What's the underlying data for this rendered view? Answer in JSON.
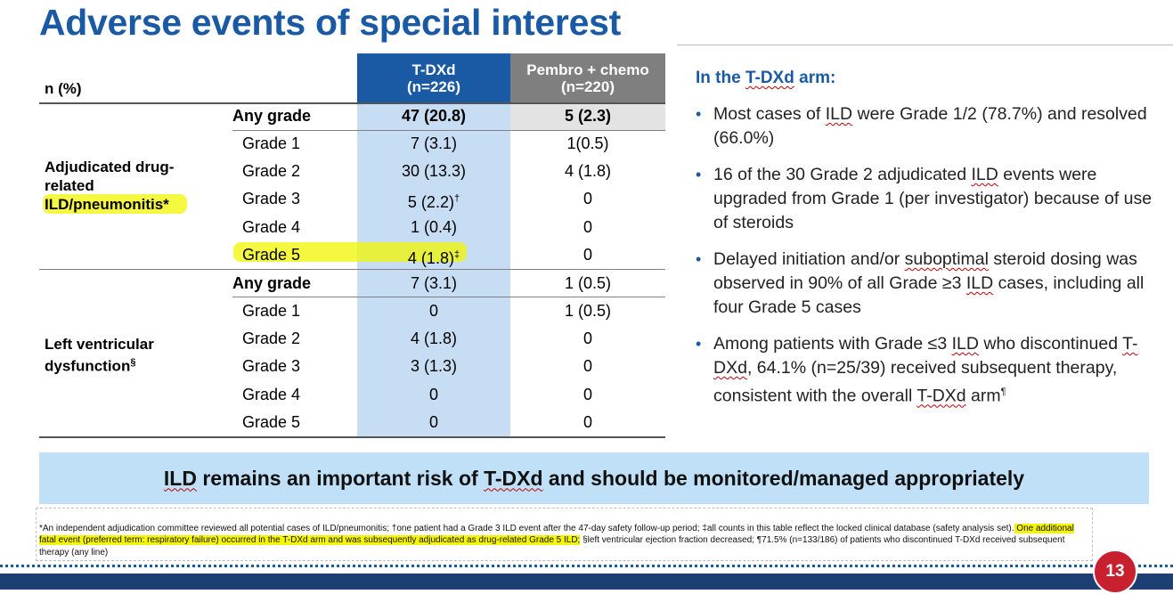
{
  "title": "Adverse events of special interest",
  "table": {
    "corner": "n (%)",
    "col_tdxd": {
      "name": "T-DXd",
      "n": "(n=226)"
    },
    "col_pem": {
      "name": "Pembro + chemo",
      "n": "(n=220)"
    },
    "ild": {
      "label_line1": "Adjudicated drug-",
      "label_line2": "related",
      "label_line3": "ILD/pneumonitis*",
      "rows": [
        {
          "grade": "Any grade",
          "tdxd": "47 (20.8)",
          "pem": "5 (2.3)"
        },
        {
          "grade": "Grade 1",
          "tdxd": "7 (3.1)",
          "pem": "1(0.5)"
        },
        {
          "grade": "Grade 2",
          "tdxd": "30 (13.3)",
          "pem": "4 (1.8)"
        },
        {
          "grade": "Grade 3",
          "tdxd": "5 (2.2)",
          "tdxd_mark": "†",
          "pem": "0"
        },
        {
          "grade": "Grade 4",
          "tdxd": "1 (0.4)",
          "pem": "0"
        },
        {
          "grade": "Grade 5",
          "tdxd": "4 (1.8)",
          "tdxd_mark": "‡",
          "pem": "0"
        }
      ]
    },
    "lvd": {
      "label_line1": "Left ventricular",
      "label_line2": "dysfunction",
      "label_mark": "§",
      "rows": [
        {
          "grade": "Any grade",
          "tdxd": "7 (3.1)",
          "pem": "1 (0.5)"
        },
        {
          "grade": "Grade 1",
          "tdxd": "0",
          "pem": "1 (0.5)"
        },
        {
          "grade": "Grade 2",
          "tdxd": "4 (1.8)",
          "pem": "0"
        },
        {
          "grade": "Grade 3",
          "tdxd": "3 (1.3)",
          "pem": "0"
        },
        {
          "grade": "Grade 4",
          "tdxd": "0",
          "pem": "0"
        },
        {
          "grade": "Grade 5",
          "tdxd": "0",
          "pem": "0"
        }
      ]
    }
  },
  "panel": {
    "title_pre": "In the ",
    "title_term": "T-DXd",
    "title_post": " arm:",
    "b1_a": "Most cases of ",
    "b1_term": "ILD",
    "b1_b": " were Grade 1/2 (78.7%) and resolved (66.0%)",
    "b2_a": "16 of the 30 Grade 2 adjudicated ",
    "b2_term": "ILD",
    "b2_b": " events were upgraded from Grade 1 (per investigator) because of use of steroids",
    "b3_a": "Delayed initiation and/or ",
    "b3_term": "suboptimal",
    "b3_b": " steroid dosing was observed in 90% of all Grade ≥3 ",
    "b3_term2": "ILD",
    "b3_c": " cases, including all four Grade 5 cases",
    "b4_a": "Among patients with Grade ≤3 ",
    "b4_term": "ILD",
    "b4_b": " who discontinued ",
    "b4_term2": "T-DXd",
    "b4_c": ", 64.1% (n=25/39) received subsequent therapy, consistent with the overall ",
    "b4_term3": "T-DXd",
    "b4_d": " arm",
    "b4_mark": "¶"
  },
  "banner": {
    "term1": "ILD",
    "mid": " remains an important risk of ",
    "term2": "T-DXd",
    "end": " and should be monitored/managed appropriately"
  },
  "footnote": {
    "part1": "*An independent adjudication committee reviewed all potential cases of ILD/pneumonitis; †one patient had a Grade 3 ILD event after the 47-day safety follow-up period; ‡all counts in this table reflect the locked clinical database (safety analysis set).",
    "part2": " One additional fatal event (preferred term: respiratory failure) occurred in the T-DXd arm and was subsequently adjudicated as drug-related Grade 5 ILD;",
    "part3": " §left ventricular ejection fraction decreased; ¶71.5% (n=133/186) of patients who discontinued T-DXd received subsequent therapy (any line)"
  },
  "page_number": "13",
  "colors": {
    "brand_blue": "#1a5aa5",
    "tdxd_tint": "#c6ddf3",
    "banner": "#bfe0f7",
    "page_red": "#c8202f",
    "highlight": "#f2f500"
  }
}
